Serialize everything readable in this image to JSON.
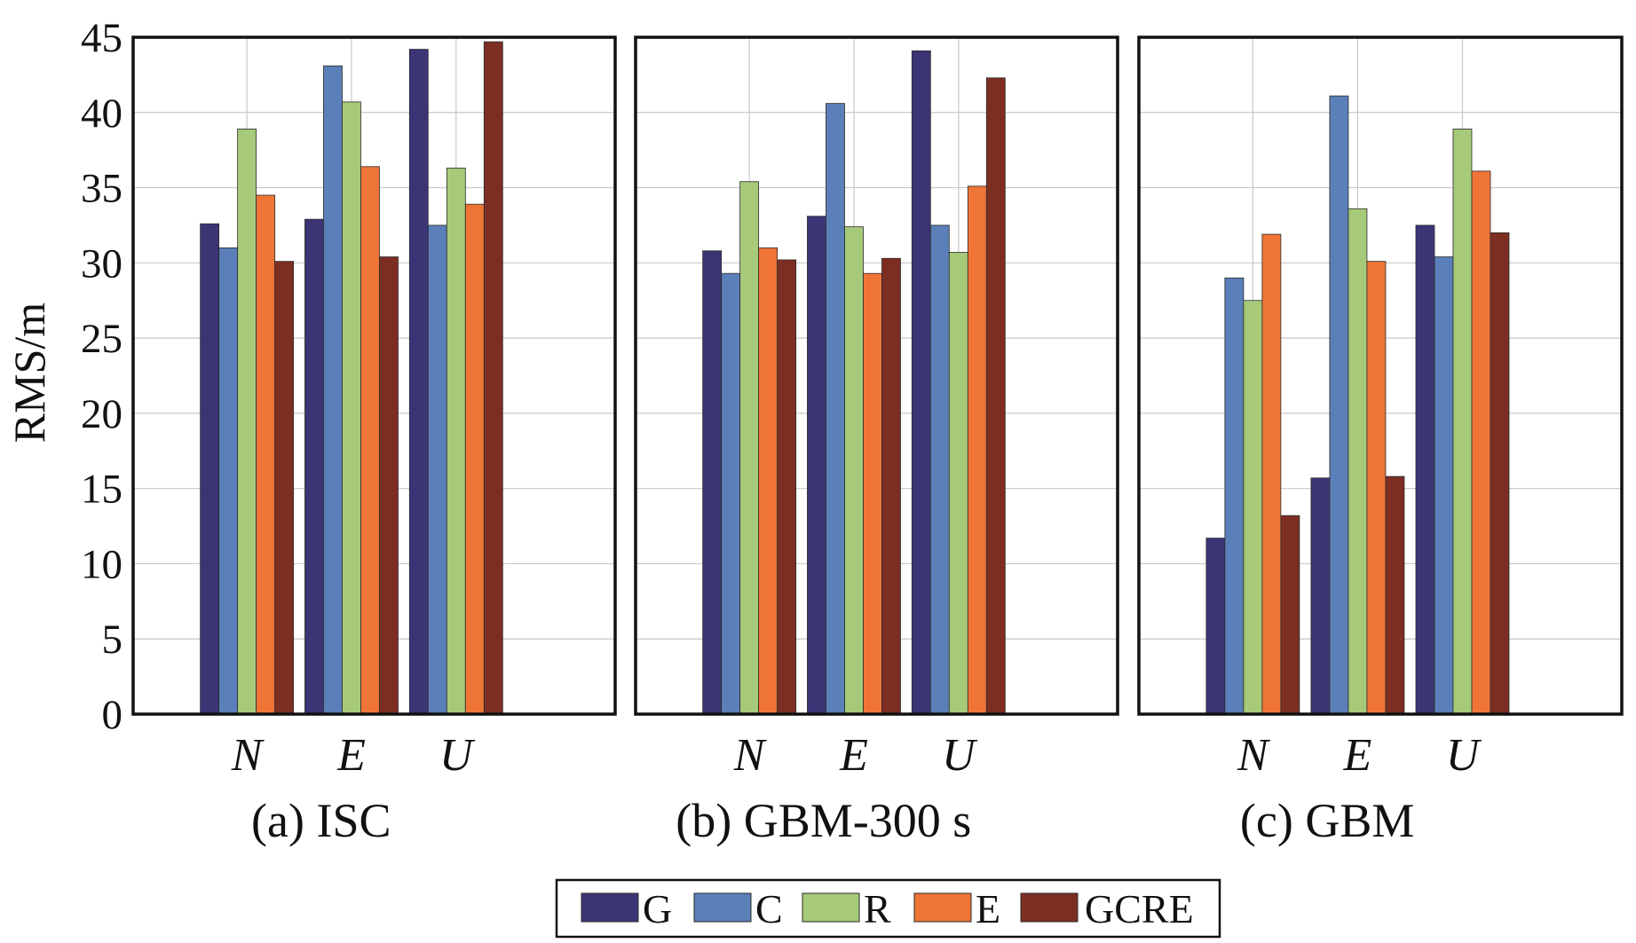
{
  "chart_data": {
    "type": "bar",
    "ylabel": "RMS/m",
    "ylim": [
      0,
      45
    ],
    "yticks": [
      0,
      5,
      10,
      15,
      20,
      25,
      30,
      35,
      40,
      45
    ],
    "grid": true,
    "legend_position": "bottom-center",
    "series_names": [
      "G",
      "C",
      "R",
      "E",
      "GCRE"
    ],
    "colors": [
      "#3b3575",
      "#5b7fb8",
      "#a6c97a",
      "#ef7537",
      "#7d2e23"
    ],
    "panels": [
      {
        "title": "(a) ISC",
        "categories": [
          "N",
          "E",
          "U"
        ],
        "series": [
          {
            "name": "G",
            "values": [
              32.6,
              32.9,
              44.2
            ]
          },
          {
            "name": "C",
            "values": [
              31.0,
              43.1,
              32.5
            ]
          },
          {
            "name": "R",
            "values": [
              38.9,
              40.7,
              36.3
            ]
          },
          {
            "name": "E",
            "values": [
              34.5,
              36.4,
              33.9
            ]
          },
          {
            "name": "GCRE",
            "values": [
              30.1,
              30.4,
              44.7
            ]
          }
        ]
      },
      {
        "title": "(b) GBM-300 s",
        "categories": [
          "N",
          "E",
          "U"
        ],
        "series": [
          {
            "name": "G",
            "values": [
              30.8,
              33.1,
              44.1
            ]
          },
          {
            "name": "C",
            "values": [
              29.3,
              40.6,
              32.5
            ]
          },
          {
            "name": "R",
            "values": [
              35.4,
              32.4,
              30.7
            ]
          },
          {
            "name": "E",
            "values": [
              31.0,
              29.3,
              35.1
            ]
          },
          {
            "name": "GCRE",
            "values": [
              30.2,
              30.3,
              42.3
            ]
          }
        ]
      },
      {
        "title": "(c) GBM",
        "categories": [
          "N",
          "E",
          "U"
        ],
        "series": [
          {
            "name": "G",
            "values": [
              11.7,
              15.7,
              32.5
            ]
          },
          {
            "name": "C",
            "values": [
              29.0,
              41.1,
              30.4
            ]
          },
          {
            "name": "R",
            "values": [
              27.5,
              33.6,
              38.9
            ]
          },
          {
            "name": "E",
            "values": [
              31.9,
              30.1,
              36.1
            ]
          },
          {
            "name": "GCRE",
            "values": [
              13.2,
              15.8,
              32.0
            ]
          }
        ]
      }
    ]
  }
}
